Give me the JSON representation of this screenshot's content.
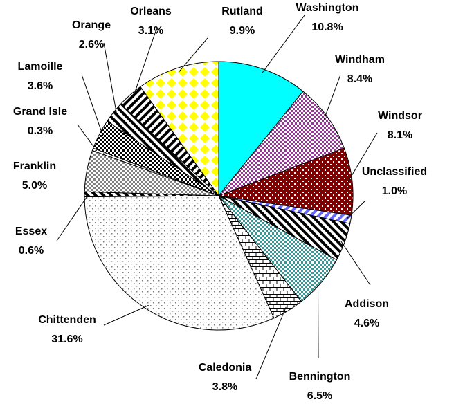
{
  "chart_data": {
    "type": "pie",
    "categories": [
      "Washington",
      "Windham",
      "Windsor",
      "Unclassified",
      "Addison",
      "Bennington",
      "Caledonia",
      "Chittenden",
      "Essex",
      "Franklin",
      "Grand Isle",
      "Lamoille",
      "Orange",
      "Orleans",
      "Rutland"
    ],
    "values": [
      10.8,
      8.4,
      8.1,
      1.0,
      4.6,
      6.5,
      3.8,
      31.6,
      0.6,
      5.0,
      0.3,
      3.6,
      2.6,
      3.1,
      9.9
    ],
    "value_labels": [
      "10.8%",
      "8.4%",
      "8.1%",
      "1.0%",
      "4.6%",
      "6.5%",
      "3.8%",
      "31.6%",
      "0.6%",
      "5.0%",
      "0.3%",
      "3.6%",
      "2.6%",
      "3.1%",
      "9.9%"
    ],
    "colors": [
      "#00ffff",
      "#993399",
      "#800000",
      "#6666ff",
      "#000000",
      "#339999",
      "#000000",
      "#808080",
      "#000000",
      "#808080",
      "#808080",
      "#000000",
      "#000000",
      "#000000",
      "#ffff00"
    ]
  }
}
